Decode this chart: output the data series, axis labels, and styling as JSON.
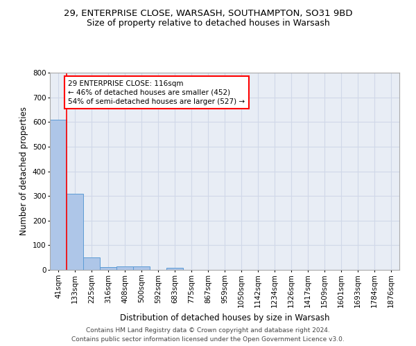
{
  "title1": "29, ENTERPRISE CLOSE, WARSASH, SOUTHAMPTON, SO31 9BD",
  "title2": "Size of property relative to detached houses in Warsash",
  "xlabel": "Distribution of detached houses by size in Warsash",
  "ylabel": "Number of detached properties",
  "footer1": "Contains HM Land Registry data © Crown copyright and database right 2024.",
  "footer2": "Contains public sector information licensed under the Open Government Licence v3.0.",
  "bar_labels": [
    "41sqm",
    "133sqm",
    "225sqm",
    "316sqm",
    "408sqm",
    "500sqm",
    "592sqm",
    "683sqm",
    "775sqm",
    "867sqm",
    "959sqm",
    "1050sqm",
    "1142sqm",
    "1234sqm",
    "1326sqm",
    "1417sqm",
    "1509sqm",
    "1601sqm",
    "1693sqm",
    "1784sqm",
    "1876sqm"
  ],
  "bar_values": [
    608,
    310,
    50,
    12,
    13,
    13,
    1,
    9,
    0,
    0,
    0,
    0,
    0,
    0,
    0,
    0,
    0,
    0,
    0,
    0,
    0
  ],
  "bar_color": "#aec6e8",
  "bar_edge_color": "#5b9bd5",
  "annotation_line1": "29 ENTERPRISE CLOSE: 116sqm",
  "annotation_line2": "← 46% of detached houses are smaller (452)",
  "annotation_line3": "54% of semi-detached houses are larger (527) →",
  "annotation_box_color": "white",
  "annotation_box_edge": "red",
  "vline_color": "red",
  "ylim": [
    0,
    800
  ],
  "yticks": [
    0,
    100,
    200,
    300,
    400,
    500,
    600,
    700,
    800
  ],
  "grid_color": "#d0d8e8",
  "bg_color": "#e8edf5",
  "title1_fontsize": 9.5,
  "title2_fontsize": 9,
  "axis_label_fontsize": 8.5,
  "tick_fontsize": 7.5,
  "footer_fontsize": 6.5,
  "annotation_fontsize": 7.5
}
